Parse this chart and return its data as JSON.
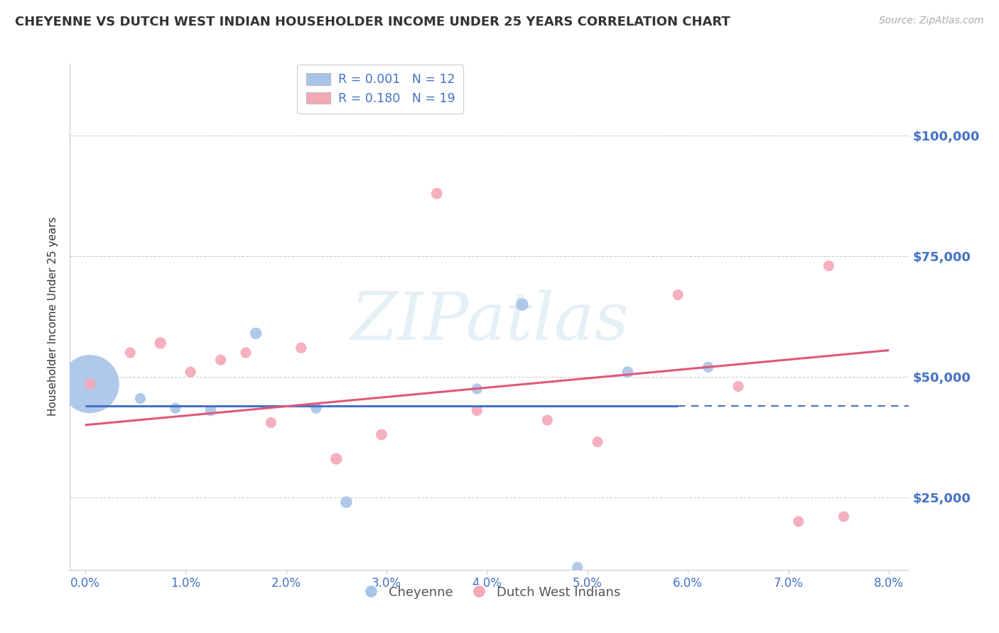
{
  "title": "CHEYENNE VS DUTCH WEST INDIAN HOUSEHOLDER INCOME UNDER 25 YEARS CORRELATION CHART",
  "source": "Source: ZipAtlas.com",
  "ylabel": "Householder Income Under 25 years",
  "ylim": [
    10000,
    115000
  ],
  "xlim": [
    -0.15,
    8.2
  ],
  "yticks": [
    25000,
    50000,
    75000,
    100000
  ],
  "ytick_labels": [
    "$25,000",
    "$50,000",
    "$75,000",
    "$100,000"
  ],
  "xticks": [
    0.0,
    1.0,
    2.0,
    3.0,
    4.0,
    5.0,
    6.0,
    7.0,
    8.0
  ],
  "xtick_labels": [
    "0.0%",
    "1.0%",
    "2.0%",
    "3.0%",
    "4.0%",
    "5.0%",
    "6.0%",
    "7.0%",
    "8.0%"
  ],
  "watermark": "ZIPatlas",
  "cheyenne_color": "#a8c4e8",
  "dutch_color": "#f4a8b8",
  "cheyenne_line_color": "#4472c4",
  "dutch_line_color": "#e05878",
  "legend_R_cheyenne": "R = 0.001",
  "legend_N_cheyenne": "N = 12",
  "legend_R_dutch": "R = 0.180",
  "legend_N_dutch": "N = 19",
  "cheyenne_x": [
    0.05,
    0.55,
    0.9,
    1.25,
    1.7,
    2.3,
    2.6,
    3.9,
    4.35,
    5.4,
    6.2,
    4.9
  ],
  "cheyenne_y": [
    48500,
    45500,
    43500,
    43000,
    59000,
    43500,
    24000,
    47500,
    65000,
    51000,
    52000,
    10500
  ],
  "cheyenne_size": [
    3500,
    120,
    120,
    130,
    140,
    120,
    140,
    120,
    160,
    130,
    120,
    120
  ],
  "dutch_x": [
    0.05,
    0.45,
    0.75,
    1.05,
    1.35,
    1.6,
    1.85,
    2.15,
    2.5,
    2.95,
    3.5,
    3.9,
    4.6,
    5.1,
    5.9,
    6.5,
    7.1,
    7.55,
    7.4
  ],
  "dutch_y": [
    48500,
    55000,
    57000,
    51000,
    53500,
    55000,
    40500,
    56000,
    33000,
    38000,
    88000,
    43000,
    41000,
    36500,
    67000,
    48000,
    20000,
    21000,
    73000
  ],
  "dutch_size": [
    120,
    120,
    140,
    120,
    120,
    120,
    120,
    120,
    140,
    130,
    130,
    120,
    120,
    120,
    120,
    120,
    120,
    120,
    120
  ],
  "cheyenne_trendline_x": [
    0.0,
    5.9
  ],
  "cheyenne_trendline_y": [
    44000,
    44000
  ],
  "dutch_trendline_x": [
    0.0,
    8.0
  ],
  "dutch_trendline_y": [
    40000,
    55500
  ],
  "grid_color": "#cccccc",
  "background_color": "#ffffff",
  "title_color": "#333333",
  "ytick_color": "#4472c4",
  "xtick_color": "#4472c4",
  "text_color": "#555555"
}
